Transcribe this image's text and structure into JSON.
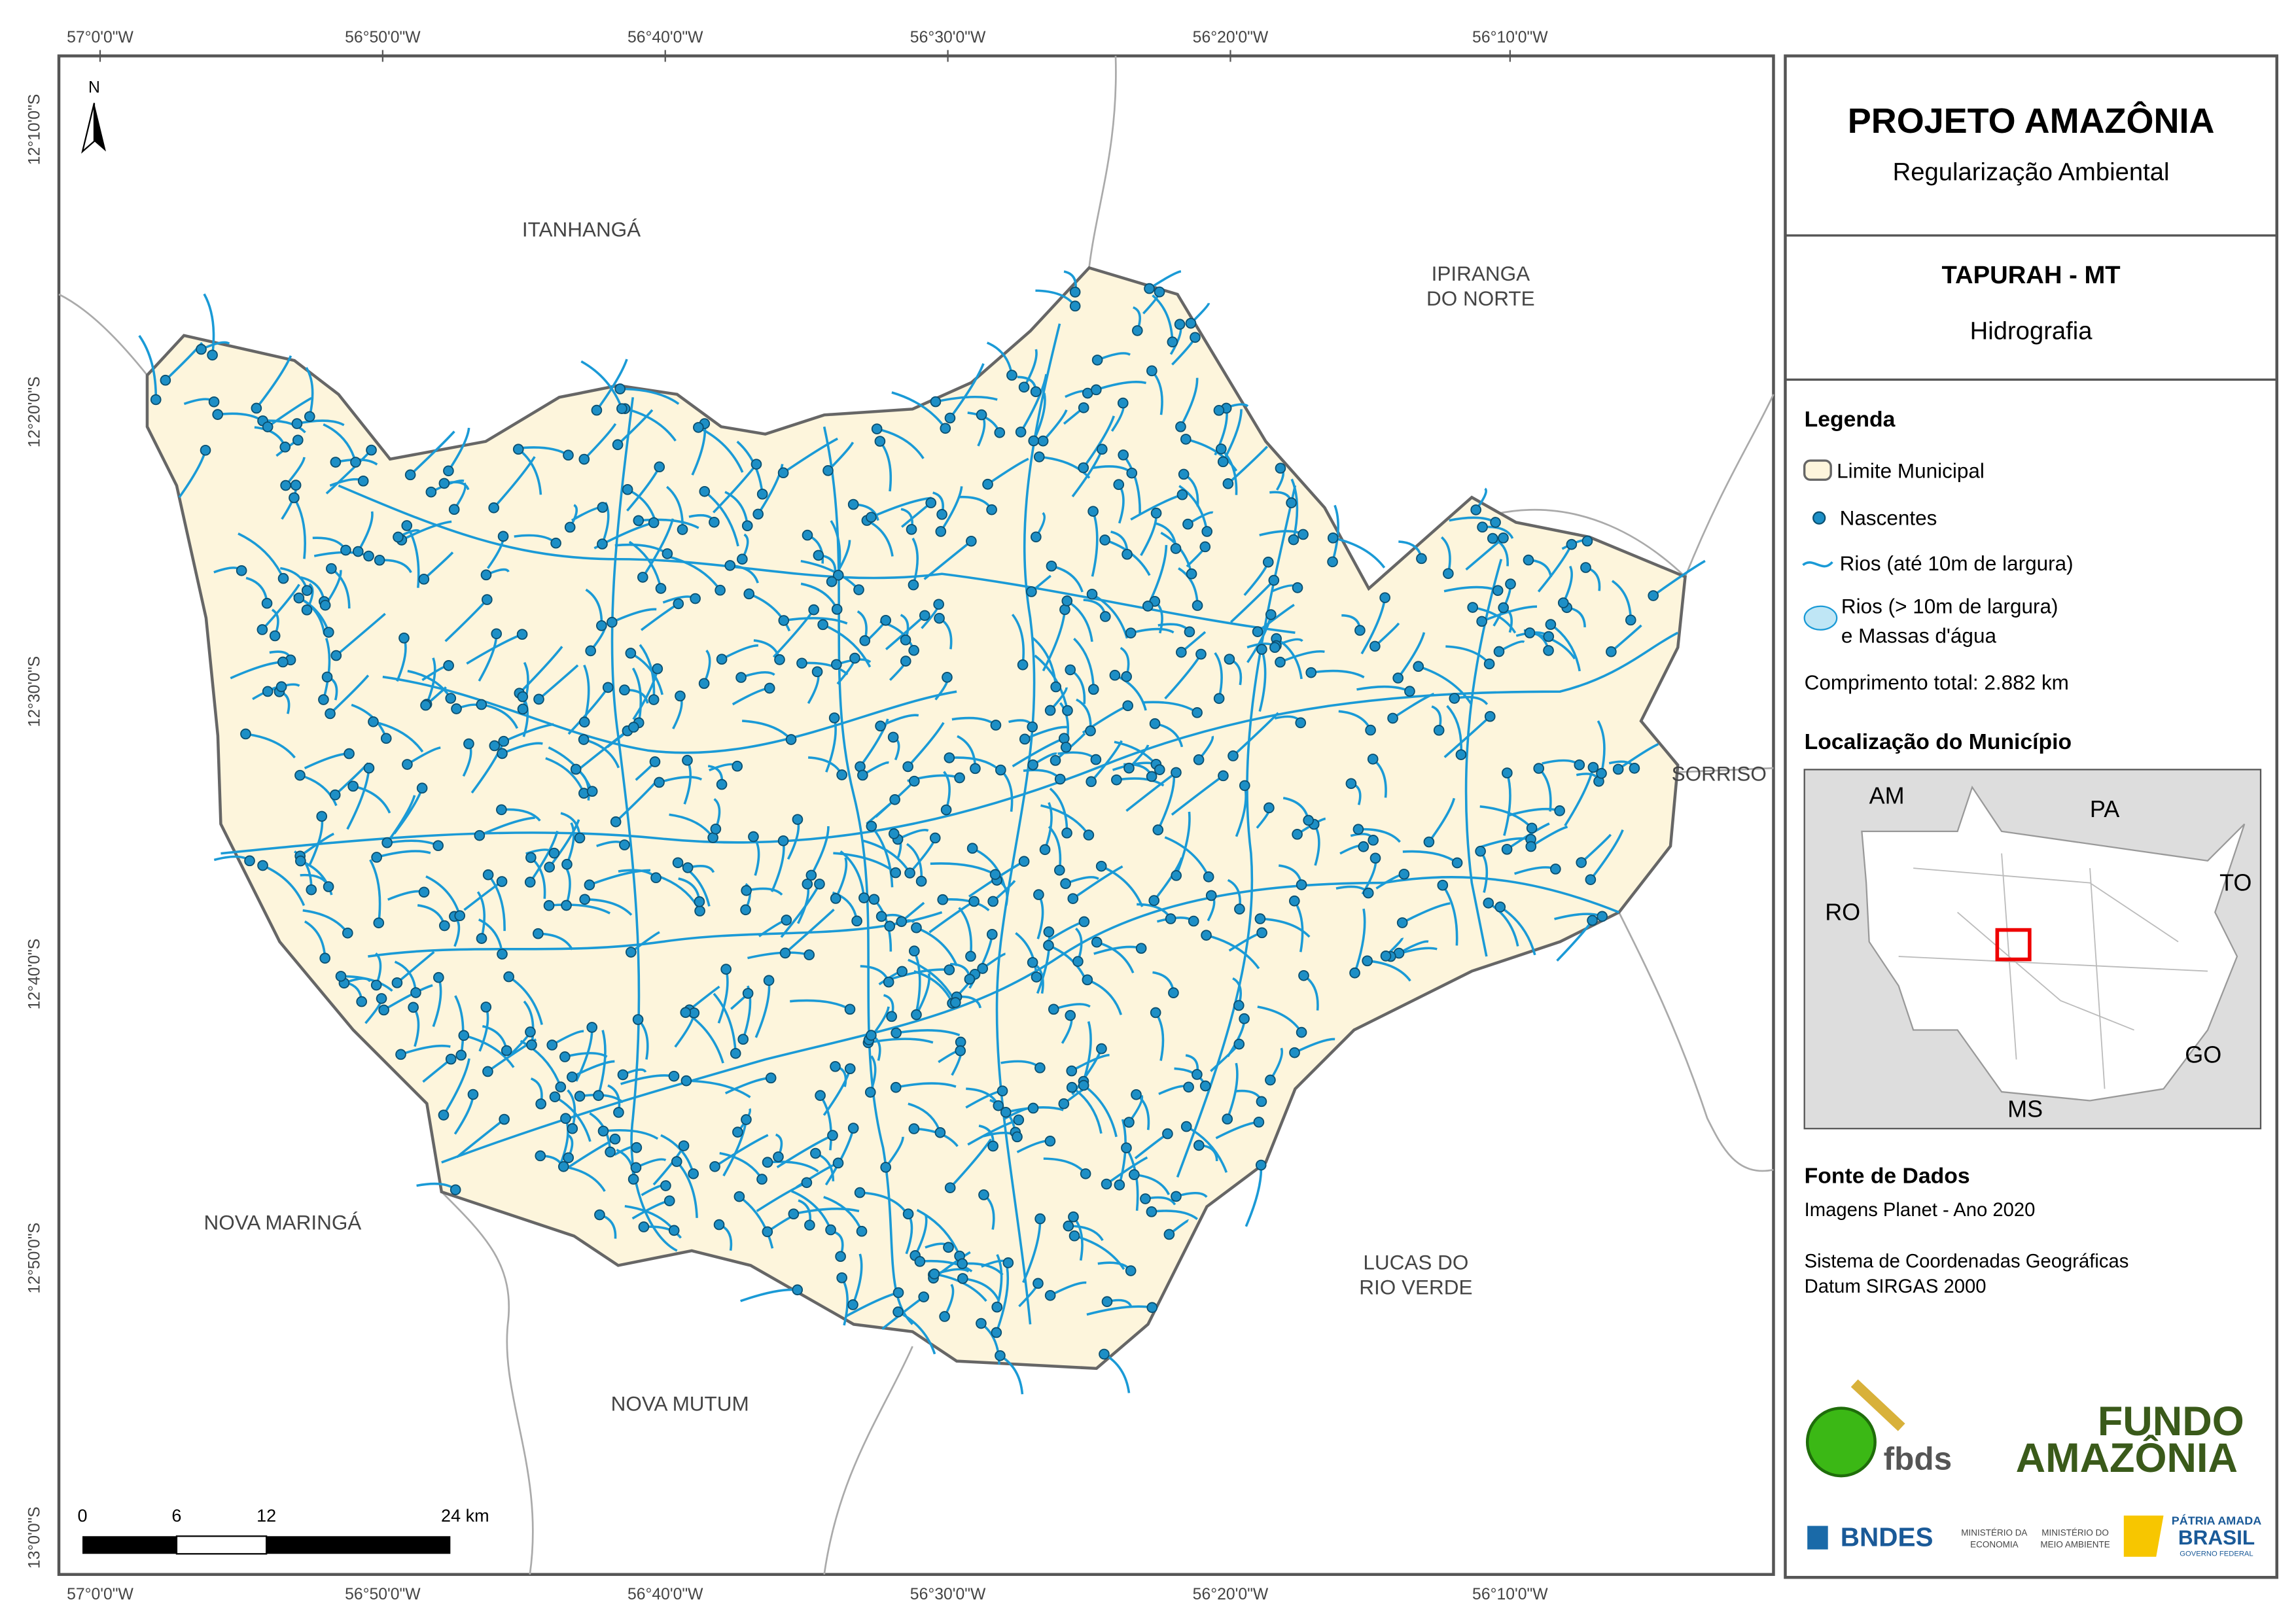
{
  "map": {
    "north": "N",
    "xcoords": [
      "57°0'0\"W",
      "56°50'0\"W",
      "56°40'0\"W",
      "56°30'0\"W",
      "56°20'0\"W",
      "56°10'0\"W"
    ],
    "ycoords": [
      "12°10'0\"S",
      "12°20'0\"S",
      "12°30'0\"S",
      "12°40'0\"S",
      "12°50'0\"S",
      "13°0'0\"S"
    ],
    "neighbors": [
      [
        "ITANHANGÁ"
      ],
      [
        "IPIRANGA",
        "DO NORTE"
      ],
      [
        "SORRISO"
      ],
      [
        "NOVA MARINGÁ"
      ],
      [
        "LUCAS DO",
        "RIO VERDE"
      ],
      [
        "NOVA MUTUM"
      ]
    ],
    "scale": [
      "0",
      "6",
      "12",
      "24 km"
    ]
  },
  "panel": {
    "title": "PROJETO AMAZÔNIA",
    "subtitle": "Regularização Ambiental",
    "municipality": "TAPURAH - MT",
    "theme": "Hidrografia",
    "legend": {
      "title": "Legenda",
      "boundary": "Limite Municipal",
      "springs": "Nascentes",
      "rivers": "Rios (até 10m de largura)",
      "water": [
        "Rios (> 10m de largura)",
        "e Massas d'água"
      ],
      "total": "Comprimento total:  2.882 km"
    },
    "location": {
      "title": "Localização do Município",
      "states": [
        "AM",
        "PA",
        "TO",
        "RO",
        "GO",
        "MS"
      ]
    },
    "sources": {
      "title": "Fonte de Dados",
      "lines": [
        "Imagens Planet - Ano 2020",
        "Sistema de Coordenadas Geográficas",
        "Datum SIRGAS 2000"
      ]
    },
    "logos": {
      "fbds": "fbds",
      "fundo": [
        "FUNDO",
        "AMAZÔNIA"
      ],
      "bndes": "BNDES",
      "economia": [
        "MINISTÉRIO DA",
        "ECONOMIA"
      ],
      "meio": [
        "MINISTÉRIO DO",
        "MEIO AMBIENTE"
      ],
      "patria": [
        "PÁTRIA AMADA",
        "BRASIL",
        "GOVERNO FEDERAL"
      ]
    }
  }
}
